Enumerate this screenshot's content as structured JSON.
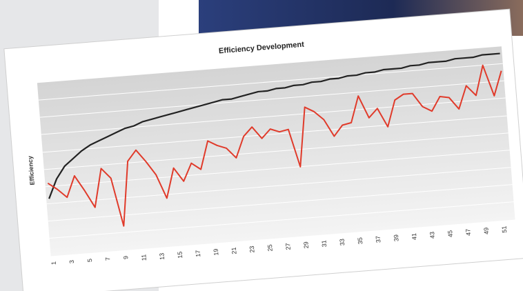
{
  "chart_data": {
    "type": "line",
    "title": "Efficiency Development",
    "y_label": "Efficiency",
    "categories": [
      "1",
      null,
      "3",
      null,
      "5",
      null,
      "7",
      null,
      "9",
      null,
      "11",
      null,
      "13",
      null,
      "15",
      null,
      "17",
      null,
      "19",
      null,
      "21",
      null,
      "23",
      null,
      "25",
      null,
      "27",
      null,
      "29",
      null,
      "31",
      null,
      "33",
      null,
      "35",
      null,
      "37",
      null,
      "39",
      null,
      "41",
      null,
      "43",
      null,
      "45",
      null,
      "47",
      null,
      "49",
      null,
      "51",
      null
    ],
    "series": [
      {
        "color": "#e03a2a",
        "values": [
          4.2,
          3.8,
          3.3,
          4.5,
          3.6,
          2.6,
          4.8,
          4.2,
          1.4,
          5.1,
          5.7,
          5.0,
          4.2,
          2.8,
          4.5,
          3.7,
          4.7,
          4.3,
          5.9,
          5.6,
          5.4,
          4.8,
          6.0,
          6.5,
          5.8,
          6.3,
          6.1,
          6.2,
          4.0,
          7.4,
          7.1,
          6.6,
          5.6,
          6.2,
          6.3,
          7.8,
          6.5,
          7.0,
          5.9,
          7.4,
          7.7,
          7.7,
          6.9,
          6.6,
          7.4,
          7.3,
          6.6,
          7.9,
          7.3,
          9.0,
          7.2,
          8.6
        ]
      },
      {
        "color": "#222222",
        "values": [
          3.3,
          4.4,
          5.1,
          5.5,
          5.9,
          6.2,
          6.4,
          6.6,
          6.8,
          7.0,
          7.1,
          7.3,
          7.4,
          7.5,
          7.6,
          7.7,
          7.8,
          7.9,
          8.0,
          8.1,
          8.2,
          8.2,
          8.3,
          8.4,
          8.5,
          8.5,
          8.6,
          8.6,
          8.7,
          8.7,
          8.8,
          8.8,
          8.9,
          8.9,
          9.0,
          9.0,
          9.1,
          9.1,
          9.2,
          9.2,
          9.2,
          9.3,
          9.3,
          9.4,
          9.4,
          9.4,
          9.5,
          9.5,
          9.5,
          9.6,
          9.6,
          9.6
        ]
      }
    ],
    "ylim": [
      0,
      10
    ]
  }
}
